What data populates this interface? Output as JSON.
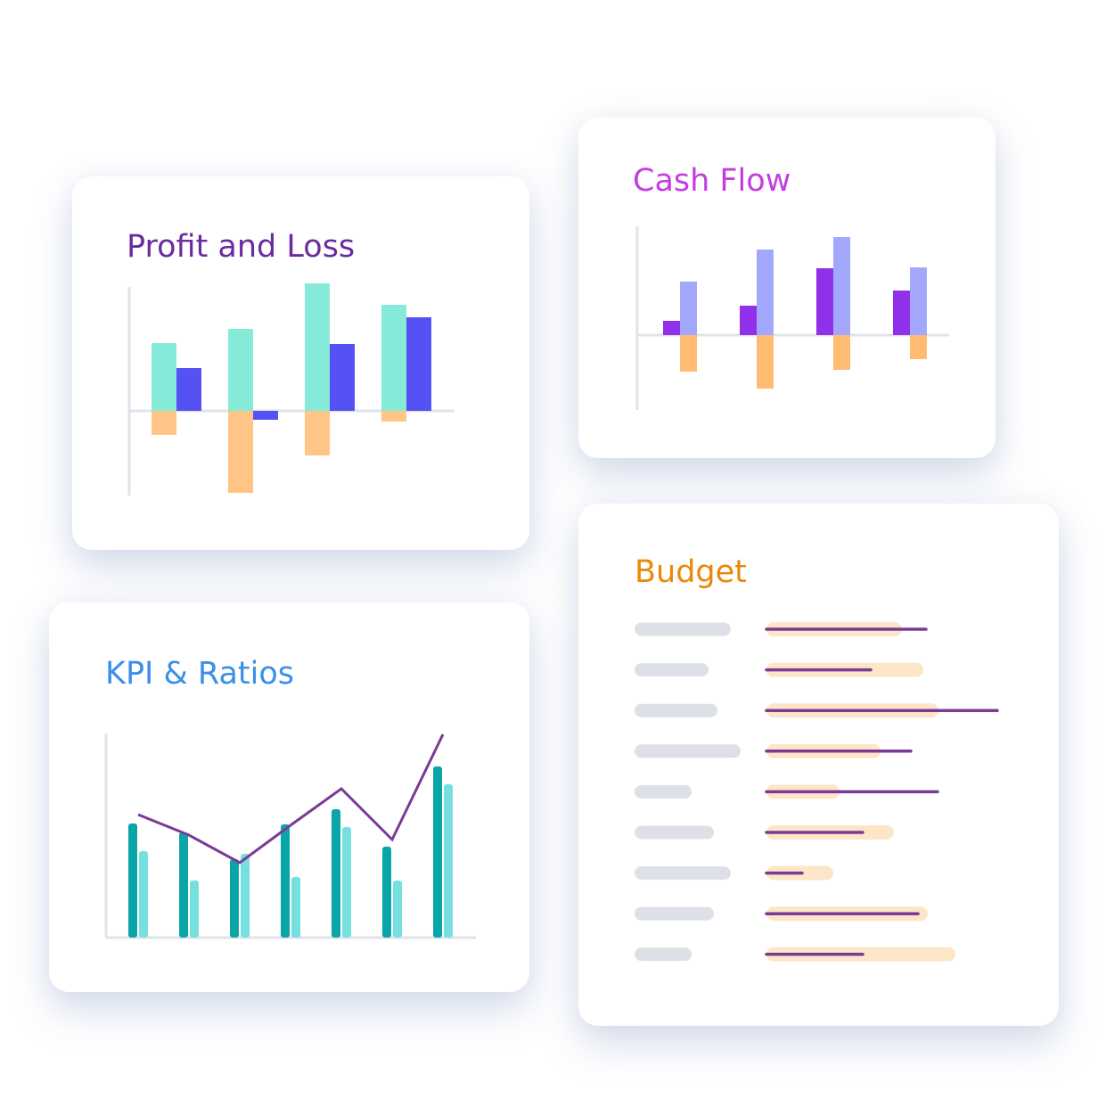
{
  "chart_data": [
    {
      "type": "bar",
      "title": "Profit and Loss",
      "title_color": "#6a2c9e",
      "ylim": [
        -95,
        139
      ],
      "series": [
        {
          "color": "#86ead8",
          "values": [
            76,
            92,
            143,
            119
          ]
        },
        {
          "color": "#5551f5",
          "values": [
            48,
            -10,
            75,
            105
          ]
        },
        {
          "color": "#ffc587",
          "values": [
            -27,
            -92,
            -50,
            -12
          ]
        }
      ]
    },
    {
      "type": "bar",
      "title": "Cash Flow",
      "title_color": "#c53de0",
      "ylim": [
        -84,
        122
      ],
      "series": [
        {
          "color": "#9030ea",
          "values": [
            16,
            33,
            75,
            50
          ]
        },
        {
          "color": "#a4a8fd",
          "values": [
            60,
            96,
            110,
            76
          ]
        },
        {
          "color": "#ffbb72",
          "values": [
            -41,
            -60,
            -39,
            -27
          ]
        }
      ]
    },
    {
      "type": "bar",
      "title": "KPI & Ratios",
      "title_color": "#3b8fe8",
      "ylim": [
        0,
        229
      ],
      "series": [
        {
          "color": "#0aa5a8",
          "values": [
            128,
            118,
            88,
            127,
            144,
            102,
            192
          ]
        },
        {
          "color": "#76dfe0",
          "values": [
            97,
            64,
            94,
            68,
            124,
            64,
            172
          ]
        },
        {
          "type": "line",
          "color": "#7a3b96",
          "values": [
            138,
            115,
            84,
            126,
            167,
            110,
            228
          ]
        }
      ]
    },
    {
      "type": "hbar",
      "title": "Budget",
      "title_color": "#e8890c",
      "xlim": [
        0,
        260
      ],
      "series": [
        {
          "color": "#fde6c8",
          "values": [
            152,
            176,
            193,
            128,
            82,
            143,
            75,
            181,
            212
          ]
        },
        {
          "type": "line",
          "color": "#7a3b96",
          "values": [
            179,
            117,
            259,
            162,
            192,
            108,
            40,
            170,
            108
          ]
        }
      ]
    }
  ]
}
